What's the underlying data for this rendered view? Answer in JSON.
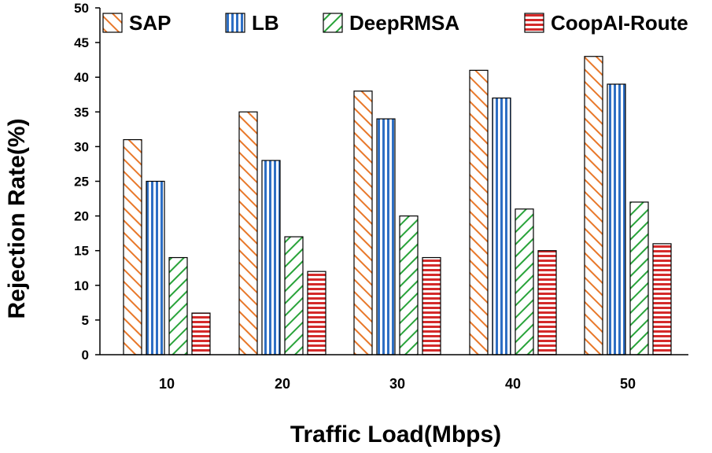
{
  "chart_data": {
    "type": "bar",
    "title": "",
    "xlabel": "Traffic Load(Mbps)",
    "ylabel": "Rejection Rate(%)",
    "ylim": [
      0,
      50
    ],
    "yticks": [
      0,
      5,
      10,
      15,
      20,
      25,
      30,
      35,
      40,
      45,
      50
    ],
    "categories": [
      "10",
      "20",
      "30",
      "40",
      "50"
    ],
    "legend_position": "top",
    "series": [
      {
        "name": "SAP",
        "values": [
          31,
          35,
          38,
          41,
          43
        ],
        "color": "#e8782a",
        "pattern": "diagonal-hatch"
      },
      {
        "name": "LB",
        "values": [
          25,
          28,
          34,
          37,
          39
        ],
        "color": "#2e6fc4",
        "pattern": "vertical-stripes"
      },
      {
        "name": "DeepRMSA",
        "values": [
          14,
          17,
          20,
          21,
          22
        ],
        "color": "#29a33a",
        "pattern": "diagonal-hatch"
      },
      {
        "name": "CoopAI-Route",
        "values": [
          6,
          12,
          14,
          15,
          16
        ],
        "color": "#d42a2a",
        "pattern": "horizontal-stripes"
      }
    ]
  }
}
